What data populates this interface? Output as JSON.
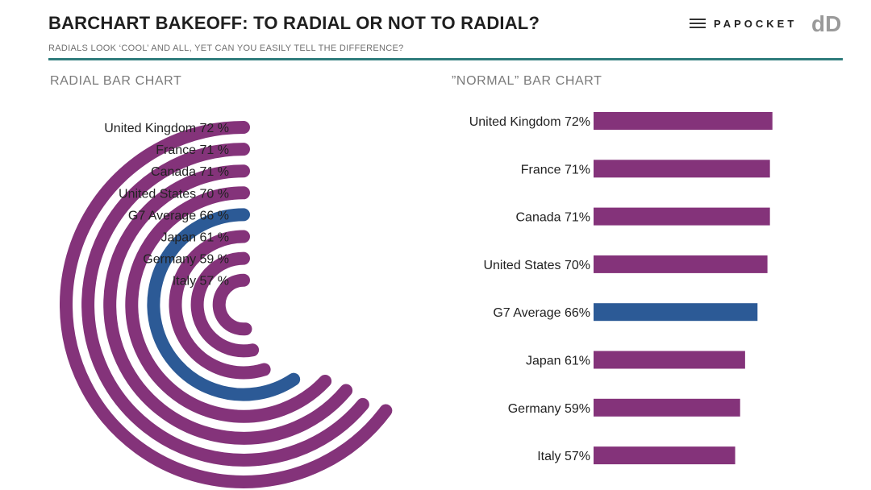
{
  "header": {
    "title": "BARCHART BAKEOFF: TO RADIAL OR NOT TO RADIAL?",
    "subtitle": "RADIALS LOOK ‘COOL’ AND ALL, YET CAN YOU EASILY TELL THE DIFFERENCE?",
    "brand": "PAPOCKET",
    "logo_text": "dD",
    "accent_color": "#2f7c7c"
  },
  "radial": {
    "section_title": "RADIAL BAR CHART"
  },
  "normal": {
    "section_title": "”NORMAL” BAR CHART"
  },
  "colors": {
    "default": "#84337a",
    "highlight": "#2c5a96"
  },
  "chart_data": [
    {
      "type": "radial-bar",
      "title": "RADIAL BAR CHART",
      "categories": [
        "United Kingdom",
        "France",
        "Canada",
        "United States",
        "G7 Average",
        "Japan",
        "Germany",
        "Italy"
      ],
      "values": [
        72,
        71,
        71,
        70,
        66,
        61,
        59,
        57
      ],
      "labels": [
        "United Kingdom  72 %",
        "France  71 %",
        "Canada  71 %",
        "United States  70 %",
        "G7 Average  66 %",
        "Japan  61 %",
        "Germany  59 %",
        "Italy  57 %"
      ],
      "highlight": "G7 Average",
      "unit": "%",
      "ylim": [
        0,
        100
      ]
    },
    {
      "type": "bar",
      "orientation": "horizontal",
      "title": "”NORMAL” BAR CHART",
      "categories": [
        "United Kingdom",
        "France",
        "Canada",
        "United States",
        "G7 Average",
        "Japan",
        "Germany",
        "Italy"
      ],
      "values": [
        72,
        71,
        71,
        70,
        66,
        61,
        59,
        57
      ],
      "labels": [
        "United Kingdom 72%",
        "France 71%",
        "Canada 71%",
        "United States 70%",
        "G7 Average 66%",
        "Japan 61%",
        "Germany 59%",
        "Italy 57%"
      ],
      "highlight": "G7 Average",
      "unit": "%",
      "ylim": [
        0,
        100
      ]
    }
  ]
}
